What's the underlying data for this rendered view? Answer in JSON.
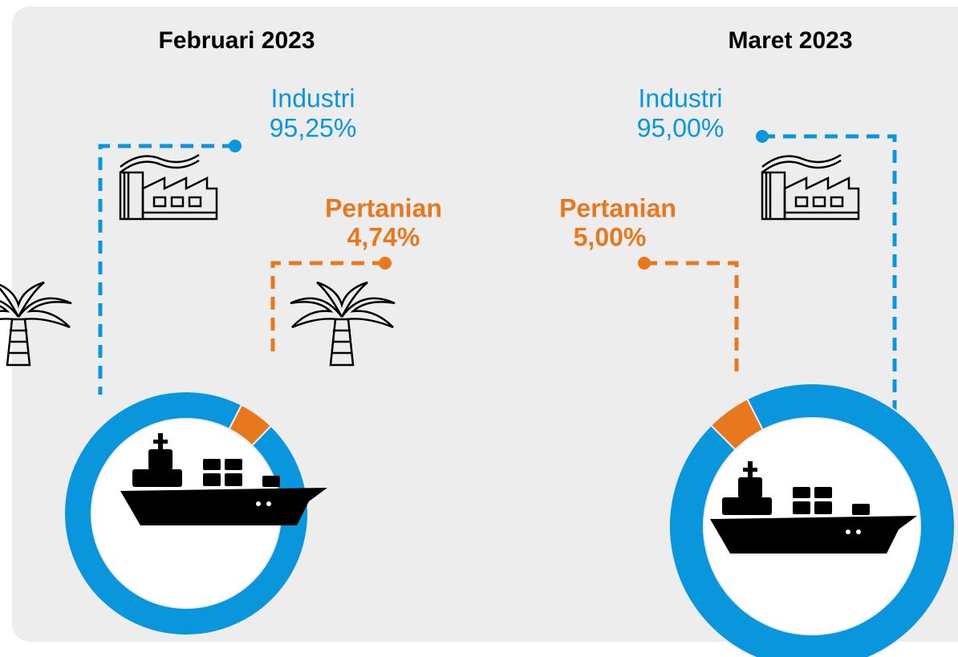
{
  "chart_data": [
    {
      "type": "donut",
      "title": "Februari 2023",
      "categories": [
        "Industri",
        "Pertanian"
      ],
      "values": [
        95.25,
        4.74
      ],
      "value_labels": [
        "95,25%",
        "4,74%"
      ],
      "colors": [
        "#0a96dc",
        "#e8781e"
      ]
    },
    {
      "type": "donut",
      "title": "Maret 2023",
      "categories": [
        "Industri",
        "Pertanian"
      ],
      "values": [
        95.0,
        5.0
      ],
      "value_labels": [
        "95,00%",
        "5,00%"
      ],
      "colors": [
        "#0a96dc",
        "#e8781e"
      ]
    }
  ]
}
